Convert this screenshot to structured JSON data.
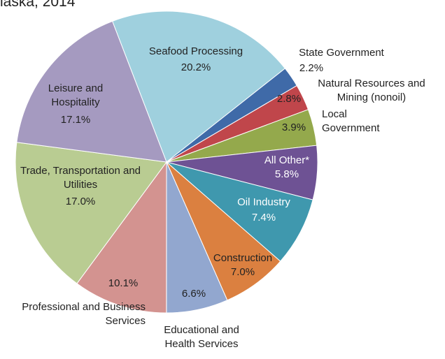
{
  "chart_data": {
    "type": "pie",
    "title": "laska, 2014",
    "categories": [
      "Seafood Processing",
      "State Government",
      "Natural Resources and Mining (nonoil)",
      "Local Government",
      "All Other*",
      "Oil Industry",
      "Construction",
      "Educational and Health Services",
      "Professional and Business Services",
      "Trade, Transportation and Utilities",
      "Leisure and Hospitality"
    ],
    "values": [
      20.2,
      2.2,
      2.8,
      3.9,
      5.8,
      7.4,
      7.0,
      6.6,
      10.1,
      17.0,
      17.1
    ],
    "value_labels": [
      "20.2%",
      "2.2%",
      "2.8%",
      "3.9%",
      "5.8%",
      "7.4%",
      "7.0%",
      "6.6%",
      "10.1%",
      "17.0%",
      "17.1%"
    ],
    "colors": [
      "#9fd0de",
      "#3f6aa8",
      "#c0464b",
      "#94a94c",
      "#6e5294",
      "#3f98ae",
      "#db8040",
      "#92a7cf",
      "#d39390",
      "#b9cc92",
      "#a59ac0"
    ]
  }
}
